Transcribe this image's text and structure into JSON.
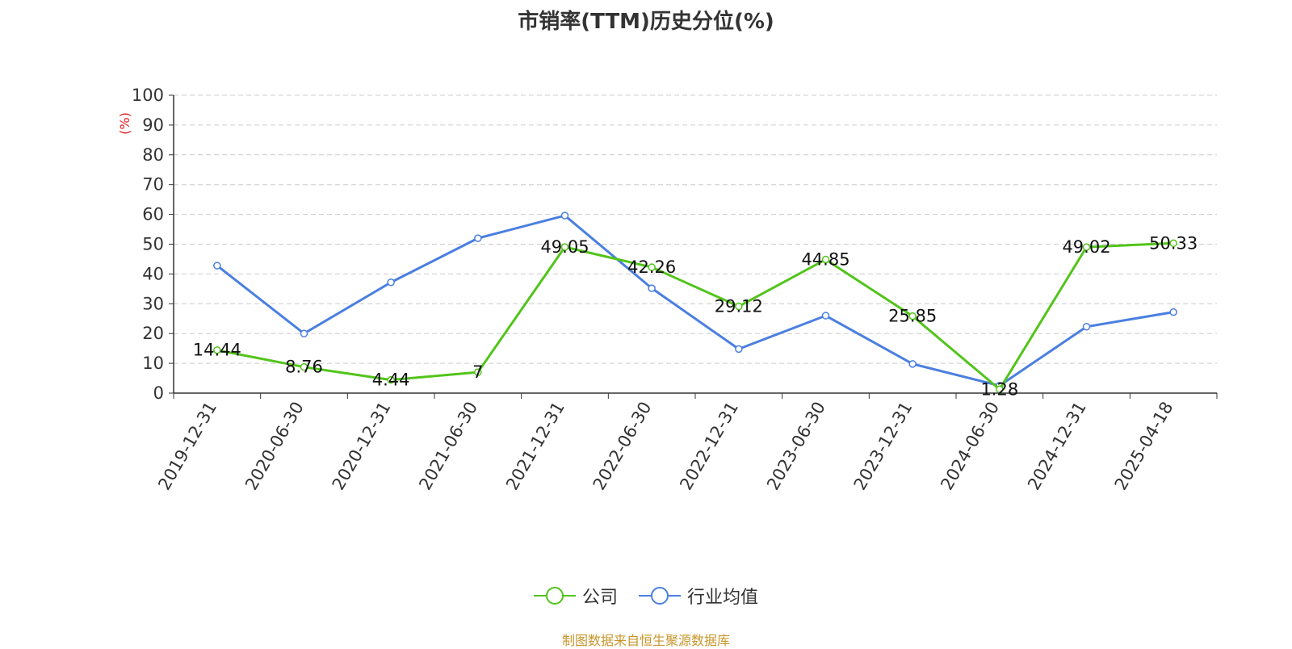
{
  "title": "市销率(TTM)历史分位(%)",
  "source": "制图数据来自恒生聚源数据库",
  "colors": {
    "company": "#52c41a",
    "industry": "#4a7fe0",
    "unit": "#e01b1b"
  },
  "chart_data": {
    "type": "line",
    "title": "市销率(TTM)历史分位(%)",
    "ylabel": "(%)",
    "ylim": [
      0,
      100
    ],
    "yticks": [
      "0",
      "10",
      "20",
      "30",
      "40",
      "50",
      "60",
      "70",
      "80",
      "90",
      "100"
    ],
    "grid": true,
    "legend_position": "bottom",
    "categories": [
      "2019-12-31",
      "2020-06-30",
      "2020-12-31",
      "2021-06-30",
      "2021-12-31",
      "2022-06-30",
      "2022-12-31",
      "2023-06-30",
      "2023-12-31",
      "2024-06-30",
      "2024-12-31",
      "2025-04-18"
    ],
    "series": [
      {
        "name": "公司",
        "color": "#52c41a",
        "values": [
          14.44,
          8.76,
          4.44,
          7,
          49.05,
          42.26,
          29.12,
          44.85,
          25.85,
          1.28,
          49.02,
          50.33
        ],
        "labels": [
          "14.44",
          "8.76",
          "4.44",
          "7",
          "49.05",
          "42.26",
          "29.12",
          "44.85",
          "25.85",
          "1.28",
          "49.02",
          "50.33"
        ]
      },
      {
        "name": "行业均值",
        "color": "#4a7fe0",
        "values": [
          42.8,
          20.0,
          37.2,
          52.0,
          59.6,
          35.2,
          14.8,
          26.0,
          9.8,
          2.5,
          22.3,
          27.2
        ]
      }
    ]
  }
}
